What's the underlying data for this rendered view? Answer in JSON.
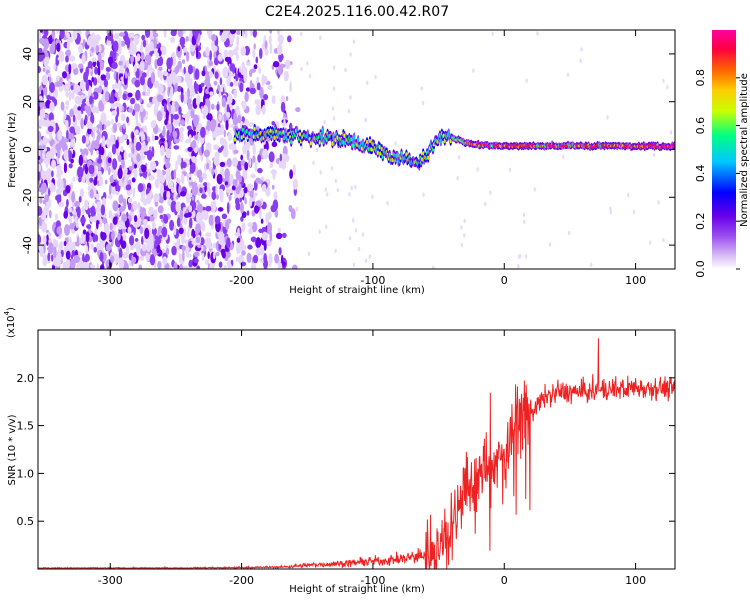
{
  "title": "C2E4.2025.116.00.42.R07",
  "chart_data": [
    {
      "type": "heatmap",
      "xlabel": "Height of straight line (km)",
      "ylabel": "Frequency (Hz)",
      "xlim": [
        -355,
        130
      ],
      "ylim": [
        -50,
        50
      ],
      "xticks": [
        -300,
        -200,
        -100,
        0,
        100
      ],
      "yticks": [
        -40,
        -20,
        0,
        20,
        40
      ],
      "colorbar": {
        "label": "Normalized spectral amplitude",
        "range": [
          0,
          1
        ],
        "ticks": [
          "0.0",
          "0.2",
          "0.4",
          "0.6",
          "0.8"
        ],
        "colors": [
          "#ffffff",
          "#d6b6f5",
          "#9a4cf0",
          "#6a00e8",
          "#0000ff",
          "#00c8ff",
          "#00ff80",
          "#c8ff00",
          "#ffcc00",
          "#ff6600",
          "#ff0040",
          "#ff00a0"
        ]
      },
      "signal_track": {
        "x": [
          -200,
          -180,
          -160,
          -140,
          -120,
          -100,
          -90,
          -80,
          -70,
          -60,
          -50,
          -45,
          -40,
          -30,
          -20,
          0,
          20,
          50,
          100,
          130
        ],
        "y": [
          6,
          7,
          6,
          5,
          4,
          1,
          -2,
          -4,
          -5,
          -3,
          5,
          6,
          5,
          3,
          2,
          1.5,
          1.5,
          1.5,
          1.5,
          1.5
        ]
      }
    },
    {
      "type": "line",
      "xlabel": "Height of straight line (km)",
      "ylabel": "SNR (10 * v/v)",
      "yscale_label": "(x10",
      "yscale_exp": "4",
      "yscale_close": ")",
      "xlim": [
        -355,
        130
      ],
      "ylim": [
        0,
        2.5
      ],
      "xticks": [
        -300,
        -200,
        -100,
        0,
        100
      ],
      "yticks": [
        "0.5",
        "1.0",
        "1.5",
        "2.0"
      ],
      "series": [
        {
          "name": "SNR",
          "color": "#ee2222",
          "x": [
            -355,
            -300,
            -250,
            -200,
            -170,
            -150,
            -120,
            -100,
            -80,
            -60,
            -50,
            -45,
            -40,
            -35,
            -30,
            -25,
            -20,
            -15,
            -10,
            -5,
            0,
            5,
            10,
            20,
            30,
            40,
            60,
            80,
            100,
            120,
            130
          ],
          "y": [
            0.01,
            0.01,
            0.01,
            0.015,
            0.02,
            0.04,
            0.06,
            0.08,
            0.1,
            0.15,
            0.25,
            0.35,
            0.5,
            0.7,
            0.9,
            0.85,
            0.95,
            1.05,
            1.05,
            1.1,
            1.2,
            1.45,
            1.6,
            1.65,
            1.78,
            1.85,
            1.85,
            1.88,
            1.9,
            1.9,
            1.88
          ]
        }
      ]
    }
  ]
}
